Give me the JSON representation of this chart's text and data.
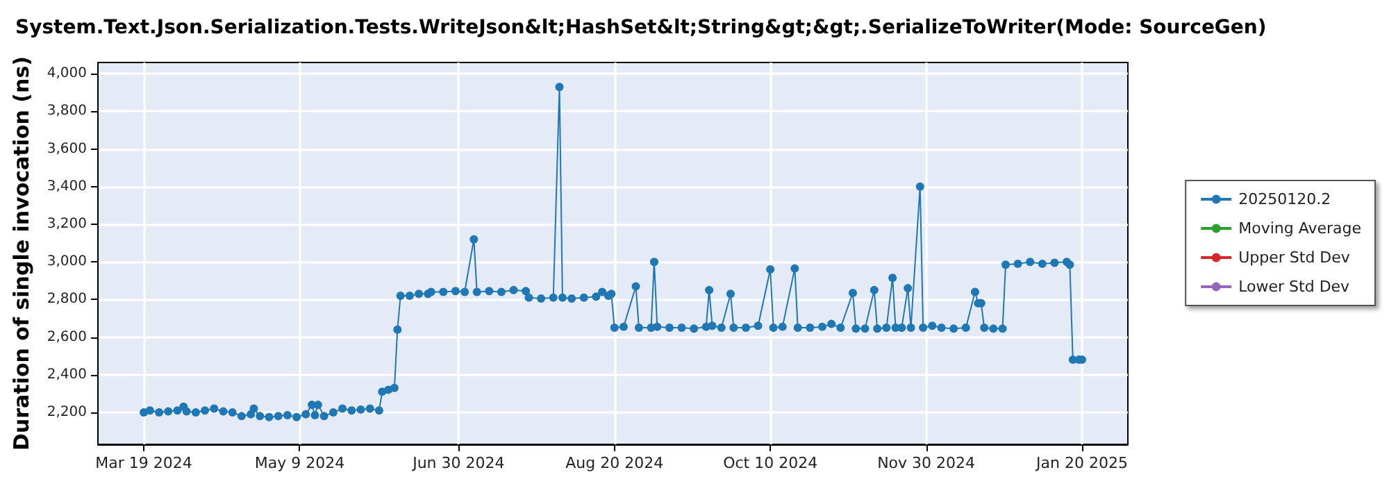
{
  "chart_data": {
    "type": "line",
    "title": "System.Text.Json.Serialization.Tests.WriteJson&lt;HashSet&lt;String&gt;&gt;.SerializeToWriter(Mode: SourceGen)",
    "ylabel": "Duration of single invocation (ns)",
    "x": [
      "2024-03-19",
      "2024-03-21",
      "2024-03-24",
      "2024-03-27",
      "2024-03-30",
      "2024-04-01",
      "2024-04-02",
      "2024-04-05",
      "2024-04-08",
      "2024-04-11",
      "2024-04-14",
      "2024-04-17",
      "2024-04-20",
      "2024-04-23",
      "2024-04-24",
      "2024-04-26",
      "2024-04-29",
      "2024-05-02",
      "2024-05-05",
      "2024-05-08",
      "2024-05-11",
      "2024-05-13",
      "2024-05-14",
      "2024-05-15",
      "2024-05-17",
      "2024-05-20",
      "2024-05-23",
      "2024-05-26",
      "2024-05-29",
      "2024-06-01",
      "2024-06-04",
      "2024-06-05",
      "2024-06-07",
      "2024-06-09",
      "2024-06-10",
      "2024-06-11",
      "2024-06-14",
      "2024-06-17",
      "2024-06-20",
      "2024-06-21",
      "2024-06-25",
      "2024-06-29",
      "2024-07-02",
      "2024-07-05",
      "2024-07-06",
      "2024-07-10",
      "2024-07-14",
      "2024-07-18",
      "2024-07-22",
      "2024-07-23",
      "2024-07-27",
      "2024-07-31",
      "2024-08-02",
      "2024-08-03",
      "2024-08-06",
      "2024-08-10",
      "2024-08-14",
      "2024-08-16",
      "2024-08-18",
      "2024-08-19",
      "2024-08-20",
      "2024-08-23",
      "2024-08-27",
      "2024-08-28",
      "2024-09-01",
      "2024-09-02",
      "2024-09-03",
      "2024-09-07",
      "2024-09-11",
      "2024-09-15",
      "2024-09-19",
      "2024-09-20",
      "2024-09-21",
      "2024-09-24",
      "2024-09-27",
      "2024-09-28",
      "2024-10-02",
      "2024-10-06",
      "2024-10-10",
      "2024-10-11",
      "2024-10-14",
      "2024-10-18",
      "2024-10-19",
      "2024-10-23",
      "2024-10-27",
      "2024-10-30",
      "2024-11-02",
      "2024-11-06",
      "2024-11-07",
      "2024-11-10",
      "2024-11-13",
      "2024-11-14",
      "2024-11-17",
      "2024-11-19",
      "2024-11-20",
      "2024-11-22",
      "2024-11-24",
      "2024-11-25",
      "2024-11-28",
      "2024-11-29",
      "2024-12-02",
      "2024-12-05",
      "2024-12-09",
      "2024-12-13",
      "2024-12-16",
      "2024-12-17",
      "2024-12-18",
      "2024-12-19",
      "2024-12-22",
      "2024-12-25",
      "2024-12-26",
      "2024-12-30",
      "2025-01-03",
      "2025-01-07",
      "2025-01-11",
      "2025-01-15",
      "2025-01-16",
      "2025-01-17",
      "2025-01-19",
      "2025-01-20"
    ],
    "series": [
      {
        "name": "20250120.2",
        "color": "#1f77b4",
        "values": [
          2200,
          2210,
          2200,
          2205,
          2210,
          2230,
          2205,
          2200,
          2210,
          2220,
          2205,
          2200,
          2180,
          2190,
          2220,
          2180,
          2175,
          2180,
          2185,
          2175,
          2190,
          2240,
          2185,
          2240,
          2180,
          2200,
          2220,
          2210,
          2215,
          2220,
          2210,
          2310,
          2320,
          2330,
          2640,
          2820,
          2820,
          2830,
          2830,
          2840,
          2840,
          2845,
          2840,
          3120,
          2840,
          2845,
          2840,
          2850,
          2845,
          2810,
          2805,
          2810,
          3930,
          2810,
          2805,
          2810,
          2815,
          2840,
          2820,
          2830,
          2650,
          2655,
          2870,
          2650,
          2650,
          3000,
          2655,
          2650,
          2650,
          2645,
          2655,
          2850,
          2660,
          2650,
          2830,
          2650,
          2650,
          2660,
          2960,
          2650,
          2655,
          2965,
          2650,
          2650,
          2655,
          2670,
          2650,
          2835,
          2645,
          2645,
          2850,
          2645,
          2650,
          2915,
          2650,
          2650,
          2860,
          2650,
          3400,
          2650,
          2660,
          2650,
          2645,
          2650,
          2840,
          2780,
          2780,
          2650,
          2645,
          2645,
          2985,
          2990,
          3000,
          2990,
          2995,
          3000,
          2985,
          2480,
          2480,
          2480
        ]
      },
      {
        "name": "Moving Average",
        "color": "#2ca02c",
        "values": [
          null,
          null,
          null,
          null,
          null,
          null,
          null,
          null,
          null,
          null,
          null,
          null,
          null,
          null,
          null,
          null,
          null,
          null,
          null,
          null,
          null,
          null,
          null,
          null,
          null,
          null,
          null,
          null,
          null,
          null,
          null,
          null,
          null,
          null,
          null,
          null,
          null,
          null,
          null,
          null,
          null,
          null,
          null,
          null,
          null,
          null,
          null,
          null,
          null,
          null,
          null,
          null,
          null,
          null,
          null,
          null,
          null,
          null,
          null,
          null,
          null,
          null,
          null,
          null,
          null,
          null,
          null,
          null,
          null,
          null,
          null,
          null,
          null,
          null,
          null,
          null,
          null,
          null,
          null,
          null,
          null,
          null,
          null,
          null,
          null,
          null,
          null,
          null,
          null,
          null,
          null,
          null,
          null,
          null,
          null,
          null,
          null,
          null,
          null,
          null,
          null,
          null,
          null,
          null,
          null,
          null,
          null,
          null,
          null,
          null,
          null,
          null,
          null,
          null,
          null,
          null,
          null,
          null,
          null,
          null
        ]
      },
      {
        "name": "Upper Std Dev",
        "color": "#d62728",
        "values": [
          null,
          null,
          null,
          null,
          null,
          null,
          null,
          null,
          null,
          null,
          null,
          null,
          null,
          null,
          null,
          null,
          null,
          null,
          null,
          null,
          null,
          null,
          null,
          null,
          null,
          null,
          null,
          null,
          null,
          null,
          null,
          null,
          null,
          null,
          null,
          null,
          null,
          null,
          null,
          null,
          null,
          null,
          null,
          null,
          null,
          null,
          null,
          null,
          null,
          null,
          null,
          null,
          null,
          null,
          null,
          null,
          null,
          null,
          null,
          null,
          null,
          null,
          null,
          null,
          null,
          null,
          null,
          null,
          null,
          null,
          null,
          null,
          null,
          null,
          null,
          null,
          null,
          null,
          null,
          null,
          null,
          null,
          null,
          null,
          null,
          null,
          null,
          null,
          null,
          null,
          null,
          null,
          null,
          null,
          null,
          null,
          null,
          null,
          null,
          null,
          null,
          null,
          null,
          null,
          null,
          null,
          null,
          null,
          null,
          null,
          null,
          null,
          null,
          null,
          null,
          null,
          null,
          null,
          null,
          null
        ]
      },
      {
        "name": "Lower Std Dev",
        "color": "#9467bd",
        "values": [
          null,
          null,
          null,
          null,
          null,
          null,
          null,
          null,
          null,
          null,
          null,
          null,
          null,
          null,
          null,
          null,
          null,
          null,
          null,
          null,
          null,
          null,
          null,
          null,
          null,
          null,
          null,
          null,
          null,
          null,
          null,
          null,
          null,
          null,
          null,
          null,
          null,
          null,
          null,
          null,
          null,
          null,
          null,
          null,
          null,
          null,
          null,
          null,
          null,
          null,
          null,
          null,
          null,
          null,
          null,
          null,
          null,
          null,
          null,
          null,
          null,
          null,
          null,
          null,
          null,
          null,
          null,
          null,
          null,
          null,
          null,
          null,
          null,
          null,
          null,
          null,
          null,
          null,
          null,
          null,
          null,
          null,
          null,
          null,
          null,
          null,
          null,
          null,
          null,
          null,
          null,
          null,
          null,
          null,
          null,
          null,
          null,
          null,
          null,
          null,
          null,
          null,
          null,
          null,
          null,
          null,
          null,
          null,
          null,
          null,
          null,
          null,
          null,
          null,
          null,
          null,
          null,
          null,
          null,
          null
        ]
      }
    ],
    "xlim": [
      "2024-03-04",
      "2025-02-04"
    ],
    "xticks": [
      {
        "value": "2024-03-19",
        "label": "Mar 19 2024"
      },
      {
        "value": "2024-05-09",
        "label": "May 9 2024"
      },
      {
        "value": "2024-06-30",
        "label": "Jun 30 2024"
      },
      {
        "value": "2024-08-20",
        "label": "Aug 20 2024"
      },
      {
        "value": "2024-10-10",
        "label": "Oct 10 2024"
      },
      {
        "value": "2024-11-30",
        "label": "Nov 30 2024"
      },
      {
        "value": "2025-01-20",
        "label": "Jan 20 2025"
      }
    ],
    "ylim": [
      2030,
      4060
    ],
    "yticks": [
      {
        "value": 2200,
        "label": "2,200"
      },
      {
        "value": 2400,
        "label": "2,400"
      },
      {
        "value": 2600,
        "label": "2,600"
      },
      {
        "value": 2800,
        "label": "2,800"
      },
      {
        "value": 3000,
        "label": "3,000"
      },
      {
        "value": 3200,
        "label": "3,200"
      },
      {
        "value": 3400,
        "label": "3,400"
      },
      {
        "value": 3600,
        "label": "3,600"
      },
      {
        "value": 3800,
        "label": "3,800"
      },
      {
        "value": 4000,
        "label": "4,000"
      }
    ],
    "grid": true,
    "legend": "right",
    "marker": "circle",
    "line_style": "solid"
  }
}
